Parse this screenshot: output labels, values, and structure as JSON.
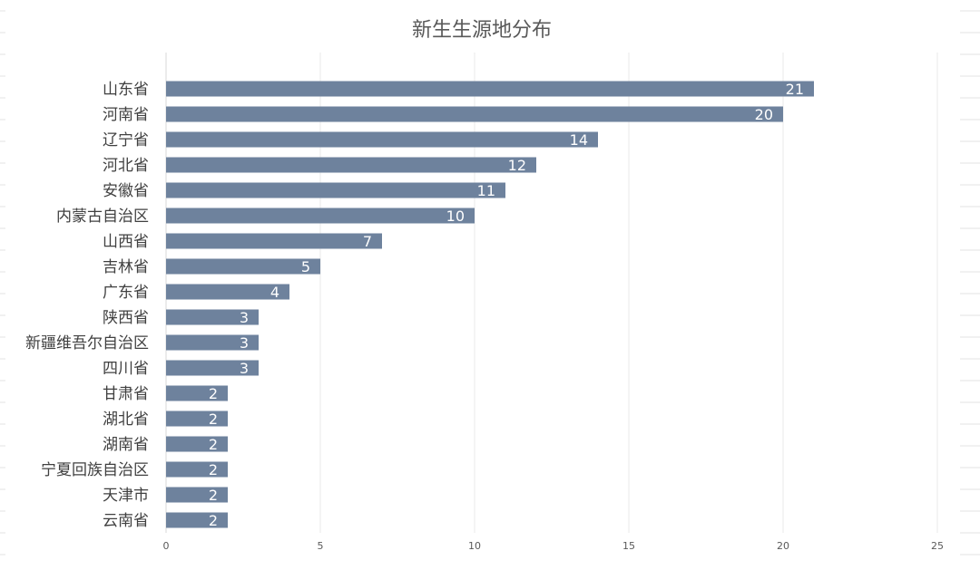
{
  "chart_data": {
    "type": "bar",
    "orientation": "horizontal",
    "title": "新生生源地分布",
    "xlabel": "",
    "ylabel": "",
    "xlim": [
      0,
      25
    ],
    "x_ticks": [
      0,
      5,
      10,
      15,
      20,
      25
    ],
    "grid": true,
    "legend": "none",
    "bar_color": "#6e829d",
    "data_label_color": "#ffffff",
    "categories": [
      "山东省",
      "河南省",
      "辽宁省",
      "河北省",
      "安徽省",
      "内蒙古自治区",
      "山西省",
      "吉林省",
      "广东省",
      "陕西省",
      "新疆维吾尔自治区",
      "四川省",
      "甘肃省",
      "湖北省",
      "湖南省",
      "宁夏回族自治区",
      "天津市",
      "云南省"
    ],
    "values": [
      21,
      20,
      14,
      12,
      11,
      10,
      7,
      5,
      4,
      3,
      3,
      3,
      2,
      2,
      2,
      2,
      2,
      2
    ]
  }
}
